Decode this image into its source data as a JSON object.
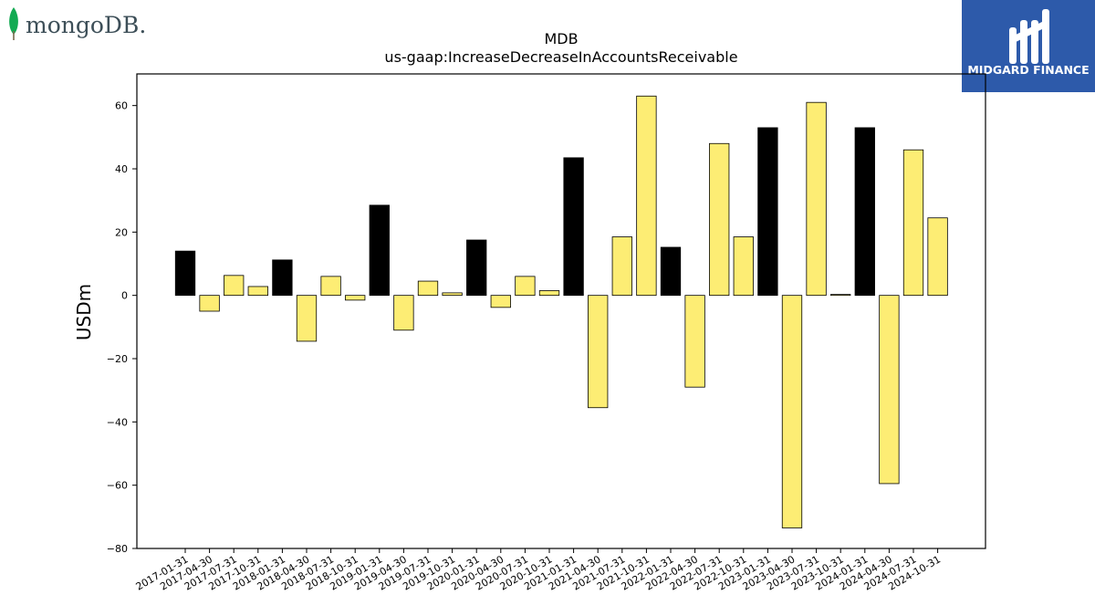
{
  "logos": {
    "left": {
      "text": "mongoDB.",
      "icon": "mongodb-leaf-icon",
      "leaf_color": "#13aa52",
      "text_color": "#3d4f58"
    },
    "right": {
      "text": "MIDGARD FINANCE",
      "icon": "midgard-finance-logo-icon",
      "bg_color": "#2d5aaa"
    }
  },
  "chart_data": {
    "type": "bar",
    "title": "MDB",
    "subtitle": "us-gaap:IncreaseDecreaseInAccountsReceivable",
    "xlabel": "",
    "ylabel": "USDm",
    "ylim": [
      -80,
      70
    ],
    "yticks": [
      -80,
      -60,
      -40,
      -20,
      0,
      20,
      40,
      60
    ],
    "ytick_labels": [
      "−80",
      "−60",
      "−40",
      "−20",
      "0",
      "20",
      "40",
      "60"
    ],
    "grid": false,
    "colors": {
      "annual": "#000000",
      "quarterly": "#fded74",
      "edge": "#000000"
    },
    "categories": [
      "2017-01-31",
      "2017-04-30",
      "2017-07-31",
      "2017-10-31",
      "2018-01-31",
      "2018-04-30",
      "2018-07-31",
      "2018-10-31",
      "2019-01-31",
      "2019-04-30",
      "2019-07-31",
      "2019-10-31",
      "2020-01-31",
      "2020-04-30",
      "2020-07-31",
      "2020-10-31",
      "2021-01-31",
      "2021-04-30",
      "2021-07-31",
      "2021-10-31",
      "2022-01-31",
      "2022-04-30",
      "2022-07-31",
      "2022-10-31",
      "2023-01-31",
      "2023-04-30",
      "2023-07-31",
      "2023-10-31",
      "2024-01-31",
      "2024-04-30",
      "2024-07-31",
      "2024-10-31"
    ],
    "values": [
      14,
      -5,
      6.3,
      2.8,
      11.2,
      -14.5,
      6,
      -1.5,
      28.5,
      -11,
      4.5,
      0.8,
      17.5,
      -3.8,
      6,
      1.5,
      43.5,
      -35.5,
      18.5,
      63,
      15.2,
      -29,
      48,
      18.5,
      53,
      -73.5,
      61,
      0.3,
      53,
      -59.5,
      46,
      24.5
    ],
    "bar_kind": [
      "annual",
      "quarterly",
      "quarterly",
      "quarterly",
      "annual",
      "quarterly",
      "quarterly",
      "quarterly",
      "annual",
      "quarterly",
      "quarterly",
      "quarterly",
      "annual",
      "quarterly",
      "quarterly",
      "quarterly",
      "annual",
      "quarterly",
      "quarterly",
      "quarterly",
      "annual",
      "quarterly",
      "quarterly",
      "quarterly",
      "annual",
      "quarterly",
      "quarterly",
      "quarterly",
      "annual",
      "quarterly",
      "quarterly",
      "quarterly"
    ]
  }
}
